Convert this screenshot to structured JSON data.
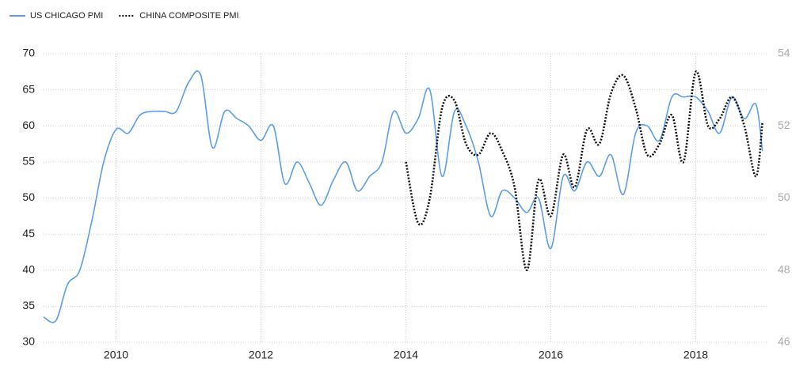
{
  "chart_data": {
    "type": "line",
    "x": [
      2009.0,
      2009.17,
      2009.33,
      2009.5,
      2009.67,
      2009.83,
      2010.0,
      2010.17,
      2010.33,
      2010.5,
      2010.67,
      2010.83,
      2011.0,
      2011.17,
      2011.33,
      2011.5,
      2011.67,
      2011.83,
      2012.0,
      2012.17,
      2012.33,
      2012.5,
      2012.67,
      2012.83,
      2013.0,
      2013.17,
      2013.33,
      2013.5,
      2013.67,
      2013.83,
      2014.0,
      2014.17,
      2014.33,
      2014.5,
      2014.67,
      2014.83,
      2015.0,
      2015.17,
      2015.33,
      2015.5,
      2015.67,
      2015.83,
      2016.0,
      2016.17,
      2016.33,
      2016.5,
      2016.67,
      2016.83,
      2017.0,
      2017.17,
      2017.33,
      2017.5,
      2017.67,
      2017.83,
      2018.0,
      2018.17,
      2018.33,
      2018.5,
      2018.67,
      2018.83,
      2018.92
    ],
    "series": [
      {
        "name": "US CHICAGO PMI",
        "color": "#5b9ee6",
        "dash": false,
        "axis": "y",
        "values": [
          33.5,
          33,
          38,
          40,
          47,
          55,
          59.5,
          59,
          61.5,
          62,
          62,
          62,
          66,
          67,
          57,
          62,
          61,
          60,
          58,
          60,
          52,
          55,
          52,
          49,
          52.5,
          55,
          51,
          53,
          55,
          62,
          59,
          61,
          65,
          53,
          62,
          60,
          55,
          47.5,
          51,
          50,
          48,
          50,
          43,
          53,
          51,
          55,
          53,
          56,
          50.5,
          59,
          60,
          58,
          64,
          64,
          64,
          62,
          59,
          64,
          61,
          63,
          56.5
        ]
      },
      {
        "name": "CHINA COMPOSITE PMI",
        "color": "#111111",
        "dash": true,
        "axis": "y2",
        "values": [
          null,
          null,
          null,
          null,
          null,
          null,
          null,
          null,
          null,
          null,
          null,
          null,
          null,
          null,
          null,
          null,
          null,
          null,
          null,
          null,
          null,
          null,
          null,
          null,
          null,
          null,
          null,
          null,
          null,
          null,
          51,
          49.3,
          50,
          52.5,
          52.7,
          51.5,
          51.2,
          51.8,
          51.3,
          50.3,
          48,
          50.5,
          49.5,
          51.2,
          50.3,
          51.9,
          51.5,
          52.9,
          53.4,
          52.5,
          51.2,
          51.5,
          52.3,
          51,
          53.5,
          52,
          52.2,
          52.8,
          52,
          50.6,
          52.1
        ]
      }
    ],
    "xlim": [
      2009,
      2019
    ],
    "xticks": [
      2010,
      2012,
      2014,
      2016,
      2018
    ],
    "ylim": [
      30,
      70
    ],
    "yticks": [
      30,
      35,
      40,
      45,
      50,
      55,
      60,
      65,
      70
    ],
    "y2lim": [
      46,
      54
    ],
    "y2ticks": [
      46,
      48,
      50,
      52,
      54
    ],
    "grid": true,
    "legend": "top-left"
  }
}
